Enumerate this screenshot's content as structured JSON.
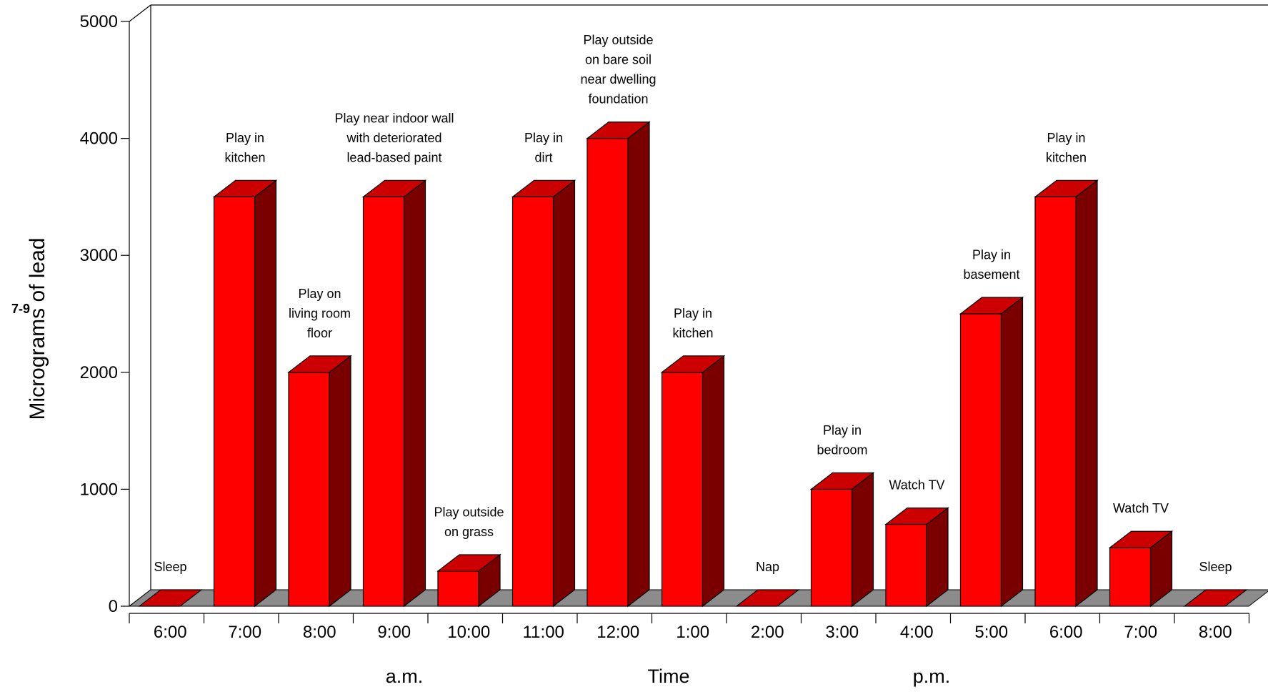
{
  "page_mark": "7-9",
  "colors": {
    "bar_front": "#ff0000",
    "bar_top": "#cc0000",
    "bar_side": "#7a0000",
    "floor": "#8c8c8c"
  },
  "chart_data": {
    "type": "bar",
    "title": "",
    "xlabel": "Time",
    "ylabel": "Micrograms of lead",
    "ylim": [
      0,
      5000
    ],
    "yticks": [
      "0",
      "1000",
      "2000",
      "3000",
      "4000",
      "5000"
    ],
    "categories": [
      "6:00",
      "7:00",
      "8:00",
      "9:00",
      "10:00",
      "11:00",
      "12:00",
      "1:00",
      "2:00",
      "3:00",
      "4:00",
      "5:00",
      "6:00",
      "7:00",
      "8:00"
    ],
    "values": [
      0,
      3500,
      2000,
      3500,
      300,
      3500,
      4000,
      2000,
      0,
      1000,
      700,
      2500,
      3500,
      500,
      0
    ],
    "bar_labels": [
      [
        "Sleep"
      ],
      [
        "Play in",
        "kitchen"
      ],
      [
        "Play on",
        "living room",
        "floor"
      ],
      [
        "Play near indoor wall",
        "with deteriorated",
        "lead-based paint"
      ],
      [
        "Play outside",
        "on grass"
      ],
      [
        "Play in",
        "dirt"
      ],
      [
        "Play outside",
        "on bare soil",
        "near dwelling",
        "foundation"
      ],
      [
        "Play in",
        "kitchen"
      ],
      [
        "Nap"
      ],
      [
        "Play in",
        "bedroom"
      ],
      [
        "Watch TV"
      ],
      [
        "Play in",
        "basement"
      ],
      [
        "Play in",
        "kitchen"
      ],
      [
        "Watch TV"
      ],
      [
        "Sleep"
      ]
    ],
    "period_labels": {
      "am": "a.m.",
      "pm": "p.m."
    },
    "grid": false,
    "three_d": true
  }
}
